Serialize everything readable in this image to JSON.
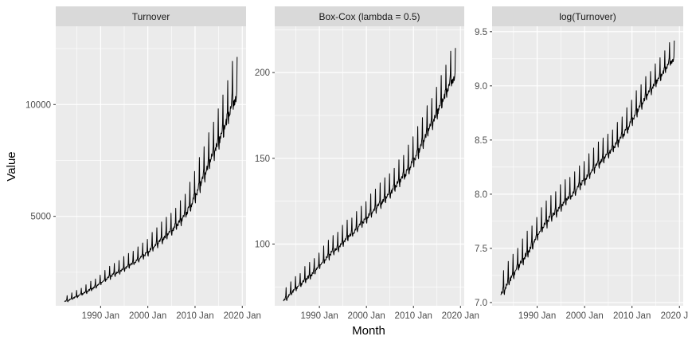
{
  "chart_data": {
    "type": "line",
    "layout": "facet",
    "xlabel": "Month",
    "ylabel": "Value",
    "x_start": 1982.33,
    "x_end": 2018.92,
    "x_ticks": [
      1990,
      2000,
      2010,
      2020
    ],
    "x_tick_labels": [
      "1990 Jan",
      "2000 Jan",
      "2010 Jan",
      "2020 Jan"
    ],
    "xlim": [
      1980.5,
      2020.8
    ],
    "colors": {
      "line": "#000000",
      "panel": "#ebebeb",
      "grid": "#ffffff",
      "strip": "#d9d9d9"
    },
    "panels": [
      {
        "title": "Turnover",
        "ylim": [
          1000,
          13500
        ],
        "y_ticks": [
          5000,
          10000
        ],
        "y_tick_labels": [
          "5000",
          "10000"
        ],
        "values": [
          1200,
          1250,
          1350,
          1450,
          1550,
          1650,
          1780,
          1900,
          2050,
          2200,
          2350,
          2480,
          2600,
          2720,
          2850,
          2980,
          3120,
          3280,
          3450,
          3650,
          3850,
          4050,
          4250,
          4450,
          4650,
          4900,
          5200,
          5550,
          6000,
          6500,
          7000,
          7500,
          8000,
          8500,
          9000,
          9600,
          10300
        ]
      },
      {
        "title": "Box-Cox (lambda = 0.5)",
        "ylim": [
          64,
          227
        ],
        "y_ticks": [
          100,
          150,
          200
        ],
        "y_tick_labels": [
          "100",
          "150",
          "200"
        ],
        "values": [
          67,
          69,
          72,
          75,
          77,
          80,
          82,
          85,
          88,
          91,
          94,
          97,
          99,
          102,
          105,
          107,
          110,
          113,
          116,
          119,
          122,
          125,
          128,
          131,
          134,
          138,
          141,
          145,
          150,
          155,
          161,
          167,
          172,
          178,
          184,
          190,
          197
        ]
      },
      {
        "title": "log(Turnover)",
        "ylim": [
          6.97,
          9.55
        ],
        "y_ticks": [
          7.0,
          7.5,
          8.0,
          8.5,
          9.0,
          9.5
        ],
        "y_tick_labels": [
          "7.0",
          "7.5",
          "8.0",
          "8.5",
          "9.0",
          "9.5"
        ],
        "values": [
          7.08,
          7.13,
          7.21,
          7.28,
          7.35,
          7.41,
          7.48,
          7.55,
          7.63,
          7.7,
          7.76,
          7.82,
          7.86,
          7.91,
          7.96,
          8.0,
          8.04,
          8.1,
          8.15,
          8.2,
          8.26,
          8.31,
          8.35,
          8.4,
          8.44,
          8.5,
          8.56,
          8.62,
          8.7,
          8.78,
          8.85,
          8.92,
          8.98,
          9.05,
          9.1,
          9.17,
          9.24
        ]
      }
    ]
  }
}
